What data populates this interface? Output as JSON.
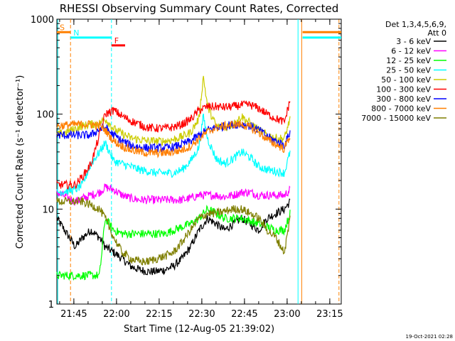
{
  "chart_data": {
    "type": "line",
    "title": "RHESSI Observing Summary Count Rates, Corrected",
    "xlabel": "Start Time (12-Aug-05 21:39:02)",
    "ylabel": "Corrected Count Rate (s⁻¹ detector⁻¹)",
    "yscale": "log",
    "ylim": [
      1,
      1000
    ],
    "xlim": [
      0,
      100
    ],
    "x_unit": "minutes since 21:39:02",
    "footer": "19-Oct-2021 02:28",
    "ytick_labels": [
      "1",
      "10",
      "100",
      "1000"
    ],
    "xtick_labels": [
      "21:45",
      "22:00",
      "22:15",
      "22:30",
      "22:45",
      "23:00",
      "23:15"
    ],
    "xticks": [
      5.97,
      20.97,
      35.97,
      50.97,
      65.97,
      80.97,
      95.97
    ],
    "legend_header": [
      "Det 1,3,4,5,6,9,",
      "Att 0"
    ],
    "series": [
      {
        "name": "3 - 6 keV",
        "color": "#000000",
        "x": [
          0,
          6.5,
          9,
          12,
          15,
          17,
          20,
          23,
          26,
          29,
          32,
          35,
          38,
          41,
          44,
          47,
          50,
          53,
          56,
          59,
          62,
          65,
          68,
          71,
          74,
          77,
          80,
          82
        ],
        "y": [
          8,
          4,
          5,
          6,
          5,
          4,
          3.5,
          3,
          2.5,
          2.3,
          2.2,
          2.2,
          2.3,
          2.5,
          3,
          4,
          6,
          8,
          7,
          6,
          7,
          8,
          7,
          6,
          8,
          9,
          10,
          12
        ]
      },
      {
        "name": "6 - 12 keV",
        "color": "#ff00ff",
        "x": [
          0,
          6.5,
          9,
          12,
          15,
          17,
          20,
          23,
          26,
          29,
          32,
          35,
          38,
          41,
          44,
          47,
          50,
          53,
          56,
          59,
          62,
          65,
          68,
          71,
          74,
          77,
          80,
          82
        ],
        "y": [
          15,
          12,
          13,
          14,
          15,
          17,
          16,
          14,
          13,
          12.5,
          12.5,
          12.5,
          12.5,
          12.5,
          12.5,
          13,
          14,
          14,
          14,
          13.5,
          14,
          15,
          15,
          14,
          14,
          14,
          14,
          16
        ]
      },
      {
        "name": "12 - 25 keV",
        "color": "#00ff00",
        "x": [
          0,
          6.5,
          9,
          12,
          15,
          17,
          20,
          23,
          26,
          29,
          32,
          35,
          38,
          41,
          44,
          47,
          50,
          53,
          56,
          59,
          62,
          65,
          68,
          71,
          74,
          77,
          80,
          82
        ],
        "y": [
          2,
          2,
          2,
          2,
          2,
          8,
          6,
          5.5,
          5.5,
          5.5,
          5.5,
          5.5,
          5.5,
          6,
          6.5,
          7,
          8,
          10,
          9,
          8,
          8,
          8,
          7.5,
          7,
          6.5,
          6,
          6,
          9
        ]
      },
      {
        "name": "25 - 50 keV",
        "color": "#00ffff",
        "x": [
          0,
          6.5,
          9,
          12,
          15,
          17,
          20,
          23,
          26,
          29,
          32,
          35,
          38,
          41,
          44,
          47,
          50,
          51.5,
          53,
          56,
          59,
          62,
          65,
          68,
          71,
          74,
          77,
          80,
          82
        ],
        "y": [
          15,
          16,
          18,
          30,
          40,
          50,
          32,
          30,
          28,
          26,
          25,
          24,
          24,
          24,
          26,
          32,
          45,
          95,
          55,
          34,
          30,
          34,
          40,
          35,
          28,
          26,
          25,
          24,
          40
        ]
      },
      {
        "name": "50 - 100 keV",
        "color": "#cccc00",
        "x": [
          0,
          6.5,
          9,
          12,
          15,
          17,
          20,
          23,
          26,
          29,
          32,
          35,
          38,
          41,
          44,
          47,
          50,
          51.5,
          53,
          56,
          59,
          62,
          65,
          68,
          71,
          74,
          77,
          80,
          82
        ],
        "y": [
          60,
          70,
          75,
          78,
          80,
          90,
          70,
          62,
          56,
          54,
          52,
          52,
          52,
          54,
          58,
          64,
          90,
          250,
          120,
          75,
          72,
          78,
          95,
          80,
          68,
          60,
          56,
          55,
          90
        ]
      },
      {
        "name": "100 - 300 keV",
        "color": "#ff0000",
        "x": [
          0,
          6.5,
          9,
          12,
          15,
          17,
          20,
          23,
          26,
          29,
          32,
          35,
          38,
          41,
          44,
          47,
          50,
          53,
          56,
          59,
          62,
          65,
          68,
          71,
          74,
          77,
          80,
          82
        ],
        "y": [
          18,
          18,
          22,
          30,
          60,
          100,
          110,
          95,
          85,
          78,
          72,
          71,
          71,
          73,
          78,
          88,
          110,
          120,
          120,
          118,
          120,
          125,
          125,
          115,
          100,
          90,
          82,
          140
        ]
      },
      {
        "name": "300 - 800 keV",
        "color": "#0000ff",
        "x": [
          0,
          6.5,
          9,
          12,
          15,
          17,
          20,
          23,
          26,
          29,
          32,
          35,
          38,
          41,
          44,
          47,
          50,
          53,
          56,
          59,
          62,
          65,
          68,
          71,
          74,
          77,
          80,
          82
        ],
        "y": [
          60,
          60,
          60,
          60,
          70,
          72,
          60,
          52,
          47,
          45,
          44,
          44,
          44,
          45,
          48,
          52,
          60,
          68,
          72,
          75,
          78,
          78,
          75,
          68,
          58,
          52,
          47,
          65
        ]
      },
      {
        "name": "800 - 7000 keV",
        "color": "#ff7f00",
        "x": [
          0,
          6.5,
          9,
          12,
          15,
          17,
          20,
          23,
          26,
          29,
          32,
          35,
          38,
          41,
          44,
          47,
          50,
          53,
          56,
          59,
          62,
          65,
          68,
          71,
          74,
          77,
          80,
          82
        ],
        "y": [
          75,
          78,
          78,
          78,
          75,
          68,
          52,
          46,
          42,
          40,
          39,
          39,
          39,
          40,
          42,
          46,
          55,
          65,
          72,
          75,
          78,
          78,
          72,
          64,
          54,
          48,
          43,
          60
        ]
      },
      {
        "name": "7000 - 15000 keV",
        "color": "#7f7f00",
        "x": [
          0,
          6.5,
          9,
          12,
          15,
          17,
          20,
          23,
          26,
          29,
          32,
          35,
          38,
          41,
          44,
          47,
          50,
          53,
          56,
          59,
          62,
          65,
          68,
          71,
          74,
          77,
          80,
          82
        ],
        "y": [
          12,
          12,
          12,
          11,
          10,
          8,
          5,
          3.5,
          3,
          2.8,
          2.8,
          3,
          3.2,
          3.5,
          4.5,
          6,
          8,
          9,
          9,
          9.5,
          10,
          10,
          9,
          8,
          6,
          5,
          3.5,
          8
        ]
      }
    ],
    "annotations": [
      {
        "label": "S",
        "color": "#ff7f00",
        "x0": 0,
        "x1": 4.8,
        "y": 730
      },
      {
        "label": "N",
        "color": "#00ffff",
        "x0": 4.8,
        "x1": 19.2,
        "y": 640
      },
      {
        "label": "F",
        "color": "#ff0000",
        "x0": 19.2,
        "x1": 24,
        "y": 530
      },
      {
        "label": "",
        "color": "#ff7f00",
        "x0": 86.4,
        "x1": 100,
        "y": 730
      },
      {
        "label": "",
        "color": "#00ffff",
        "x0": 86.4,
        "x1": 100,
        "y": 640
      }
    ],
    "vertical_lines": [
      {
        "x": 0.3,
        "color": "#00ffff",
        "style": "solid"
      },
      {
        "x": 4.8,
        "color": "#ff7f00",
        "style": "dashed"
      },
      {
        "x": 19.2,
        "color": "#00ffff",
        "style": "dashed"
      },
      {
        "x": 84.8,
        "color": "#00ffff",
        "style": "solid"
      },
      {
        "x": 86.1,
        "color": "#ff7f00",
        "style": "solid"
      },
      {
        "x": 99.2,
        "color": "#ff7f00",
        "style": "dashed"
      }
    ]
  }
}
